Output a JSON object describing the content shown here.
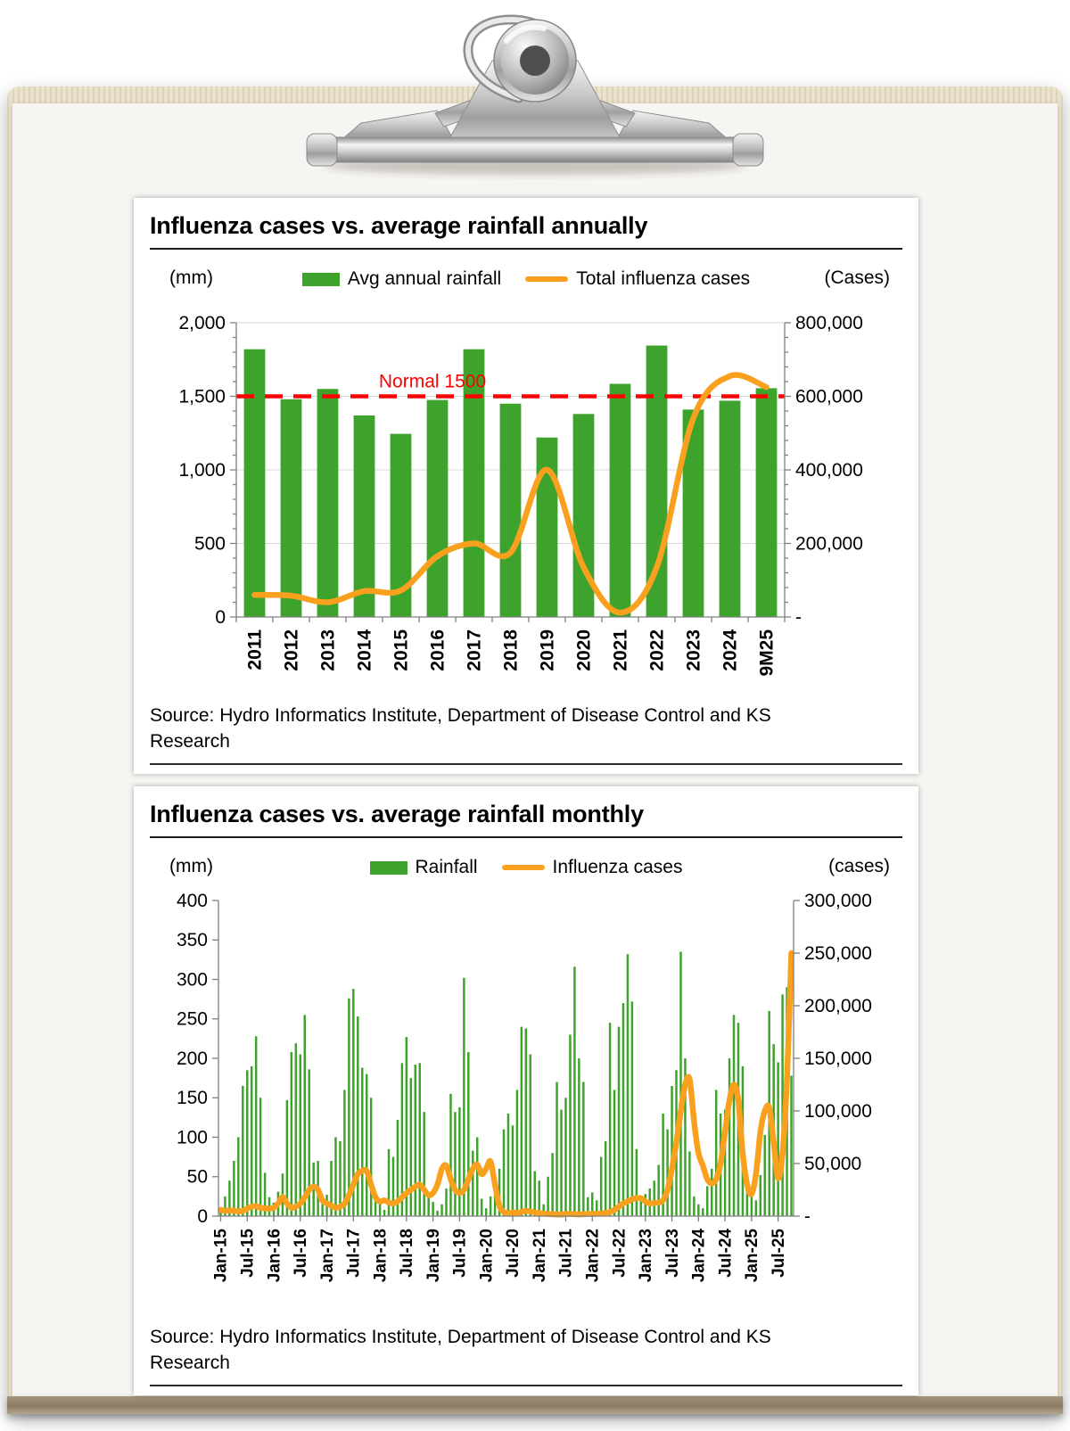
{
  "style": {
    "bar_green": "#3EA32C",
    "line_orange": "#F9A11E",
    "annotation_red": "#FF0000",
    "axis_gray": "#808080",
    "grid_gray": "#D9D9D9"
  },
  "chart_data": [
    {
      "type": "bar",
      "title": "Influenza cases vs. average rainfall annually",
      "source": "Source: Hydro Informatics Institute, Department of Disease Control and KS Research",
      "categories": [
        "2011",
        "2012",
        "2013",
        "2014",
        "2015",
        "2016",
        "2017",
        "2018",
        "2019",
        "2020",
        "2021",
        "2022",
        "2023",
        "2024",
        "9M25"
      ],
      "series": [
        {
          "name": "Avg annual rainfall",
          "type": "bar",
          "axis": "left",
          "color": "#3EA32C",
          "values": [
            1820,
            1480,
            1550,
            1370,
            1245,
            1475,
            1820,
            1450,
            1220,
            1380,
            1585,
            1845,
            1410,
            1470,
            1555
          ]
        },
        {
          "name": "Total influenza cases",
          "type": "line",
          "axis": "right",
          "color": "#F9A11E",
          "values": [
            60000,
            58000,
            40000,
            70000,
            72000,
            165000,
            200000,
            175000,
            400000,
            135000,
            12000,
            135000,
            540000,
            655000,
            625000
          ]
        }
      ],
      "left_axis": {
        "unit": "(mm)",
        "min": 0,
        "max": 2000,
        "ticks": [
          "0",
          "500",
          "1,000",
          "1,500",
          "2,000"
        ],
        "minor_per_major": 5
      },
      "right_axis": {
        "unit": "(Cases)",
        "min": 0,
        "max": 800000,
        "ticks": [
          "-",
          "200,000",
          "400,000",
          "600,000",
          "800,000"
        ],
        "minor_per_major": 5
      },
      "annotation": {
        "label": "Normal 1500",
        "value": 1500,
        "color": "#FF0000"
      },
      "grid": true
    },
    {
      "type": "bar",
      "title": "Influenza cases vs. average rainfall monthly",
      "source": "Source: Hydro Informatics Institute, Department of Disease Control and KS Research",
      "x_tick_labels": [
        "Jan-15",
        "Jul-15",
        "Jan-16",
        "Jul-16",
        "Jan-17",
        "Jul-17",
        "Jan-18",
        "Jul-18",
        "Jan-19",
        "Jul-19",
        "Jan-20",
        "Jul-20",
        "Jan-21",
        "Jul-21",
        "Jan-22",
        "Jul-22",
        "Jan-23",
        "Jul-23",
        "Jan-24",
        "Jul-24",
        "Jan-25",
        "Jul-25"
      ],
      "x_tick_every": 6,
      "series": [
        {
          "name": "Rainfall",
          "type": "bar",
          "axis": "left",
          "color": "#3EA32C",
          "values": [
            8,
            25,
            45,
            70,
            100,
            165,
            185,
            190,
            228,
            150,
            55,
            24,
            17,
            31,
            54,
            147,
            208,
            219,
            205,
            255,
            186,
            68,
            70,
            15,
            27,
            70,
            100,
            95,
            160,
            276,
            288,
            253,
            188,
            180,
            150,
            23,
            20,
            8,
            85,
            75,
            122,
            194,
            227,
            175,
            192,
            194,
            132,
            26,
            18,
            7,
            15,
            35,
            155,
            132,
            138,
            302,
            208,
            83,
            100,
            22,
            10,
            25,
            30,
            60,
            110,
            130,
            115,
            160,
            240,
            238,
            205,
            57,
            45,
            15,
            50,
            80,
            170,
            135,
            150,
            230,
            316,
            200,
            170,
            24,
            30,
            20,
            75,
            95,
            245,
            160,
            240,
            270,
            332,
            272,
            85,
            21,
            28,
            35,
            45,
            65,
            130,
            110,
            165,
            185,
            335,
            200,
            82,
            25,
            15,
            10,
            38,
            60,
            160,
            130,
            135,
            200,
            255,
            245,
            190,
            32,
            25,
            20,
            52,
            103,
            260,
            218,
            195,
            281,
            290,
            178
          ]
        },
        {
          "name": "Influenza cases",
          "type": "line",
          "axis": "right",
          "color": "#F9A11E",
          "values": [
            6000,
            5000,
            5500,
            5000,
            4500,
            5000,
            7000,
            9000,
            9500,
            8000,
            7500,
            7000,
            8000,
            12000,
            18000,
            12000,
            8000,
            9000,
            12000,
            18000,
            25000,
            28000,
            25000,
            15000,
            12000,
            10000,
            8000,
            9000,
            12000,
            20000,
            30000,
            40000,
            43000,
            43000,
            30000,
            18000,
            14000,
            15000,
            13000,
            12000,
            14000,
            18000,
            22000,
            25000,
            28000,
            30000,
            25000,
            20000,
            22000,
            30000,
            45000,
            48000,
            35000,
            25000,
            22000,
            25000,
            35000,
            45000,
            49000,
            40000,
            45000,
            52000,
            30000,
            10000,
            4000,
            3000,
            3500,
            3000,
            4000,
            5000,
            4500,
            3500,
            3000,
            2500,
            2000,
            1800,
            1500,
            1500,
            2000,
            2000,
            1800,
            1500,
            1800,
            2000,
            2000,
            2200,
            2500,
            3000,
            4000,
            6000,
            9000,
            12000,
            14000,
            16000,
            17000,
            17000,
            14000,
            12000,
            12500,
            13000,
            15000,
            25000,
            45000,
            70000,
            100000,
            125000,
            130000,
            90000,
            60000,
            48000,
            35000,
            31000,
            35000,
            50000,
            80000,
            110000,
            125000,
            110000,
            60000,
            30000,
            21000,
            40000,
            80000,
            100000,
            103000,
            70000,
            36000,
            60000,
            130000,
            250000
          ]
        }
      ],
      "left_axis": {
        "unit": "(mm)",
        "min": 0,
        "max": 400,
        "ticks": [
          "0",
          "50",
          "100",
          "150",
          "200",
          "250",
          "300",
          "350",
          "400"
        ],
        "minor_per_major": 0
      },
      "right_axis": {
        "unit": "(cases)",
        "min": 0,
        "max": 300000,
        "ticks": [
          "-",
          "50,000",
          "100,000",
          "150,000",
          "200,000",
          "250,000",
          "300,000"
        ],
        "minor_per_major": 0
      },
      "grid": false
    }
  ]
}
